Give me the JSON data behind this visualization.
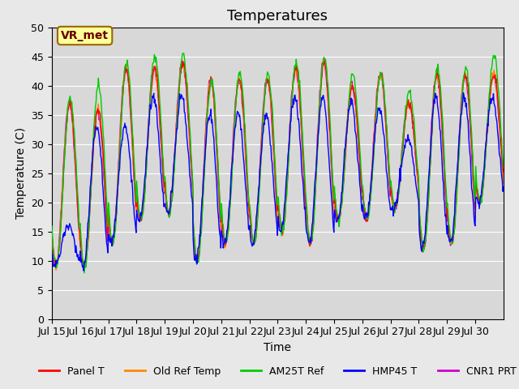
{
  "title": "Temperatures",
  "xlabel": "Time",
  "ylabel": "Temperature (C)",
  "annotation": "VR_met",
  "ylim": [
    0,
    50
  ],
  "yticks": [
    0,
    5,
    10,
    15,
    20,
    25,
    30,
    35,
    40,
    45,
    50
  ],
  "xtick_labels": [
    "Jul 15",
    "Jul 16",
    "Jul 17",
    "Jul 18",
    "Jul 19",
    "Jul 20",
    "Jul 21",
    "Jul 22",
    "Jul 23",
    "Jul 24",
    "Jul 25",
    "Jul 26",
    "Jul 27",
    "Jul 28",
    "Jul 29",
    "Jul 30"
  ],
  "series_names": [
    "Panel T",
    "Old Ref Temp",
    "AM25T Ref",
    "HMP45 T",
    "CNR1 PRT"
  ],
  "series_colors": [
    "#ff0000",
    "#ff8800",
    "#00cc00",
    "#0000ff",
    "#cc00cc"
  ],
  "background_color": "#e8e8e8",
  "plot_bg_color": "#d8d8d8",
  "title_fontsize": 13,
  "axis_label_fontsize": 10,
  "tick_fontsize": 9,
  "legend_fontsize": 9,
  "num_days": 16,
  "points_per_day": 48,
  "minima": [
    9,
    9,
    13,
    17,
    18,
    10,
    13,
    13,
    15,
    13,
    17,
    17,
    19,
    12,
    13,
    20
  ],
  "maxima_panel": [
    37,
    36,
    43,
    43,
    44,
    41,
    41,
    41,
    43,
    44,
    40,
    42,
    37,
    42,
    42,
    42
  ],
  "maxima_am25t": [
    38,
    40,
    44,
    45,
    45,
    41,
    42,
    42,
    44,
    45,
    42,
    42,
    39,
    43,
    43,
    45
  ],
  "maxima_hmp45": [
    16,
    33,
    33,
    38,
    38,
    35,
    35,
    35,
    38,
    38,
    37,
    36,
    31,
    38,
    38,
    38
  ],
  "grid_color": "#ffffff",
  "linewidth": 1.0
}
